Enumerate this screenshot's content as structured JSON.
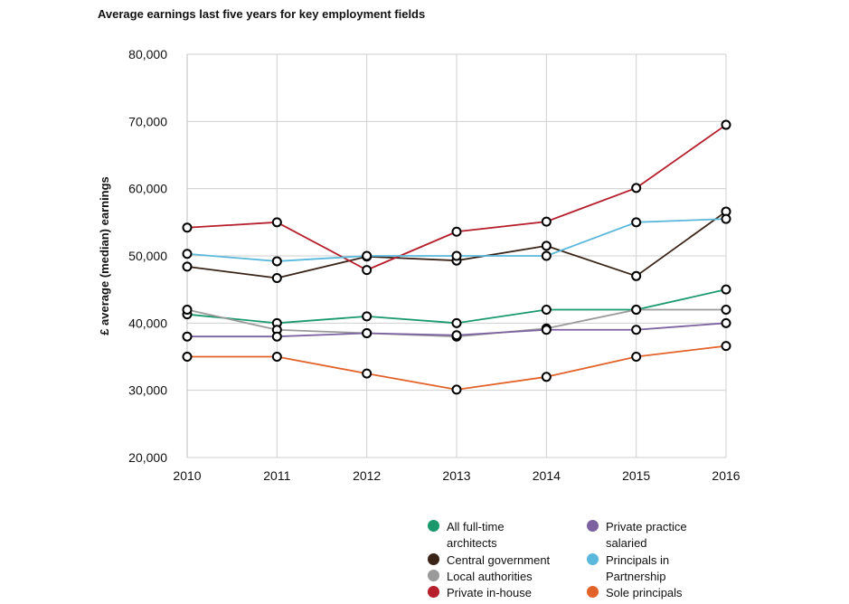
{
  "chart_data": {
    "type": "line",
    "title": "Average earnings last five years for key employment fields",
    "xlabel": "",
    "ylabel": "£ average (median) earnings",
    "x": [
      "2010",
      "2011",
      "2012",
      "2013",
      "2014",
      "2015",
      "2016"
    ],
    "ylim": [
      20000,
      80000
    ],
    "yticks": [
      "20,000",
      "30,000",
      "40,000",
      "50,000",
      "60,000",
      "70,000",
      "80,000"
    ],
    "yticks_values": [
      20000,
      30000,
      40000,
      50000,
      60000,
      70000,
      80000
    ],
    "grid": true,
    "legend_position": "bottom-right",
    "series": [
      {
        "name": "All full-time architects",
        "color": "#1a9a6c",
        "values": [
          41300,
          40000,
          41000,
          40000,
          42000,
          42000,
          45000
        ]
      },
      {
        "name": "Central government",
        "color": "#3a2418",
        "values": [
          48400,
          46700,
          49900,
          49300,
          51500,
          47000,
          56600
        ]
      },
      {
        "name": "Local authorities",
        "color": "#9a9a9a",
        "values": [
          42000,
          39000,
          38500,
          38000,
          39200,
          42000,
          42000
        ]
      },
      {
        "name": "Private in-house",
        "color": "#b51e2a",
        "values": [
          54200,
          55000,
          47900,
          53600,
          55100,
          60100,
          69500
        ]
      },
      {
        "name": "Private practice salaried",
        "color": "#7d62a0",
        "values": [
          38000,
          38000,
          38500,
          38200,
          39000,
          39000,
          40000
        ]
      },
      {
        "name": "Principals in Partnership",
        "color": "#5ab8dc",
        "values": [
          50300,
          49200,
          50000,
          50000,
          50000,
          55000,
          55500
        ]
      },
      {
        "name": "Sole principals",
        "color": "#e2632a",
        "values": [
          35000,
          35000,
          32500,
          30100,
          32000,
          35000,
          36600
        ]
      }
    ]
  }
}
